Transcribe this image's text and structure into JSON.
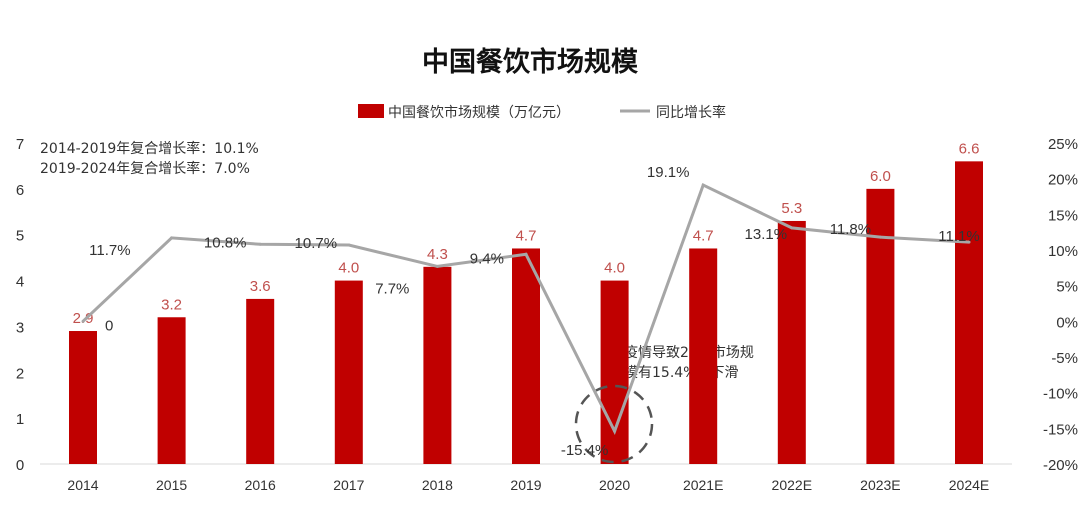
{
  "chart_data": {
    "type": "bar+line",
    "title": "中国餐饮市场规模",
    "categories": [
      "2014",
      "2015",
      "2016",
      "2017",
      "2018",
      "2019",
      "2020",
      "2021E",
      "2022E",
      "2023E",
      "2024E"
    ],
    "series": [
      {
        "name": "中国餐饮市场规模（万亿元）",
        "type": "bar",
        "axis": "left",
        "color": "#c00000",
        "values": [
          2.9,
          3.2,
          3.6,
          4.0,
          4.3,
          4.7,
          4.0,
          4.7,
          5.3,
          6.0,
          6.6
        ],
        "labels": [
          "2.9",
          "3.2",
          "3.6",
          "4.0",
          "4.3",
          "4.7",
          "4.0",
          "4.7",
          "5.3",
          "6.0",
          "6.6"
        ]
      },
      {
        "name": "同比增长率",
        "type": "line",
        "axis": "right",
        "color": "#a6a6a6",
        "values": [
          0,
          11.7,
          10.8,
          10.7,
          7.7,
          9.4,
          -15.4,
          19.1,
          13.1,
          11.8,
          11.1
        ],
        "labels": [
          "0",
          "11.7%",
          "10.8%",
          "10.7%",
          "7.7%",
          "9.4%",
          "-15.4%",
          "19.1%",
          "13.1%",
          "11.8%",
          "11.1%"
        ]
      }
    ],
    "left_axis": {
      "ylim": [
        0,
        7
      ],
      "ticks": [
        "0",
        "1",
        "2",
        "3",
        "4",
        "5",
        "6",
        "7"
      ]
    },
    "right_axis": {
      "ylim": [
        -20,
        25
      ],
      "ticks": [
        "-20%",
        "-15%",
        "-10%",
        "-5%",
        "0%",
        "5%",
        "10%",
        "15%",
        "20%",
        "25%"
      ]
    },
    "legend_position": "top-center",
    "grid": false,
    "annotations": {
      "cagr_1": "2014-2019年复合增长率：10.1%",
      "cagr_2": "2019-2024年复合增长率：7.0%",
      "covid_note_line1": "疫情导致20年市场规",
      "covid_note_line2": "模有15.4%的下滑"
    }
  }
}
